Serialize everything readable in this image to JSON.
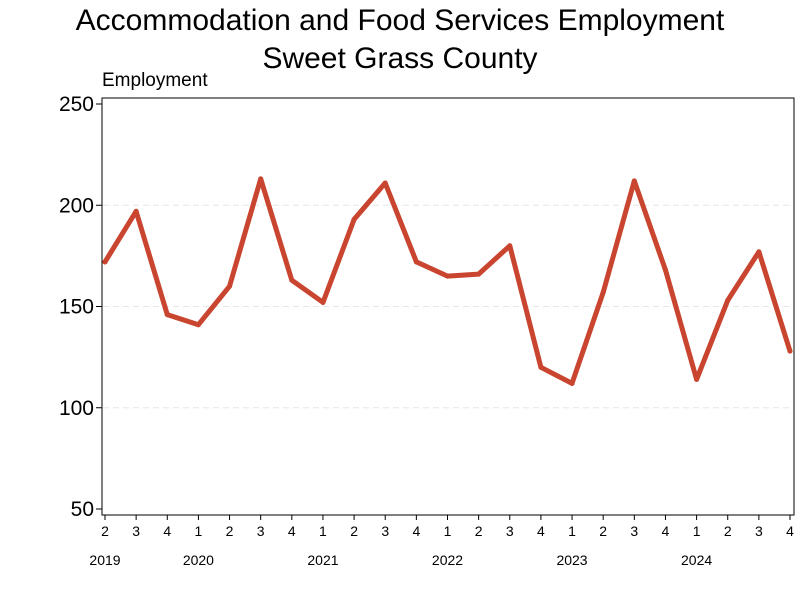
{
  "chart_data": {
    "type": "line",
    "title": [
      "Accommodation and Food Services Employment",
      "Sweet Grass County"
    ],
    "ylabel": "Employment",
    "ylim": [
      50,
      250
    ],
    "yticks": [
      50,
      100,
      150,
      200,
      250
    ],
    "grid": true,
    "x": [
      {
        "quarter": "2",
        "year": "2019"
      },
      {
        "quarter": "3",
        "year": "2019"
      },
      {
        "quarter": "4",
        "year": "2019"
      },
      {
        "quarter": "1",
        "year": "2020"
      },
      {
        "quarter": "2",
        "year": "2020"
      },
      {
        "quarter": "3",
        "year": "2020"
      },
      {
        "quarter": "4",
        "year": "2020"
      },
      {
        "quarter": "1",
        "year": "2021"
      },
      {
        "quarter": "2",
        "year": "2021"
      },
      {
        "quarter": "3",
        "year": "2021"
      },
      {
        "quarter": "4",
        "year": "2021"
      },
      {
        "quarter": "1",
        "year": "2022"
      },
      {
        "quarter": "2",
        "year": "2022"
      },
      {
        "quarter": "3",
        "year": "2022"
      },
      {
        "quarter": "4",
        "year": "2022"
      },
      {
        "quarter": "1",
        "year": "2023"
      },
      {
        "quarter": "2",
        "year": "2023"
      },
      {
        "quarter": "3",
        "year": "2023"
      },
      {
        "quarter": "4",
        "year": "2023"
      },
      {
        "quarter": "1",
        "year": "2024"
      },
      {
        "quarter": "2",
        "year": "2024"
      },
      {
        "quarter": "3",
        "year": "2024"
      },
      {
        "quarter": "4",
        "year": "2024"
      }
    ],
    "year_labels": [
      "2019",
      "2020",
      "2021",
      "2022",
      "2023",
      "2024"
    ],
    "series": [
      {
        "color": "#c9452f",
        "values": [
          172,
          197,
          146,
          141,
          160,
          213,
          163,
          152,
          193,
          211,
          172,
          165,
          166,
          180,
          120,
          112,
          157,
          212,
          168,
          114,
          153,
          177,
          128
        ]
      }
    ]
  }
}
